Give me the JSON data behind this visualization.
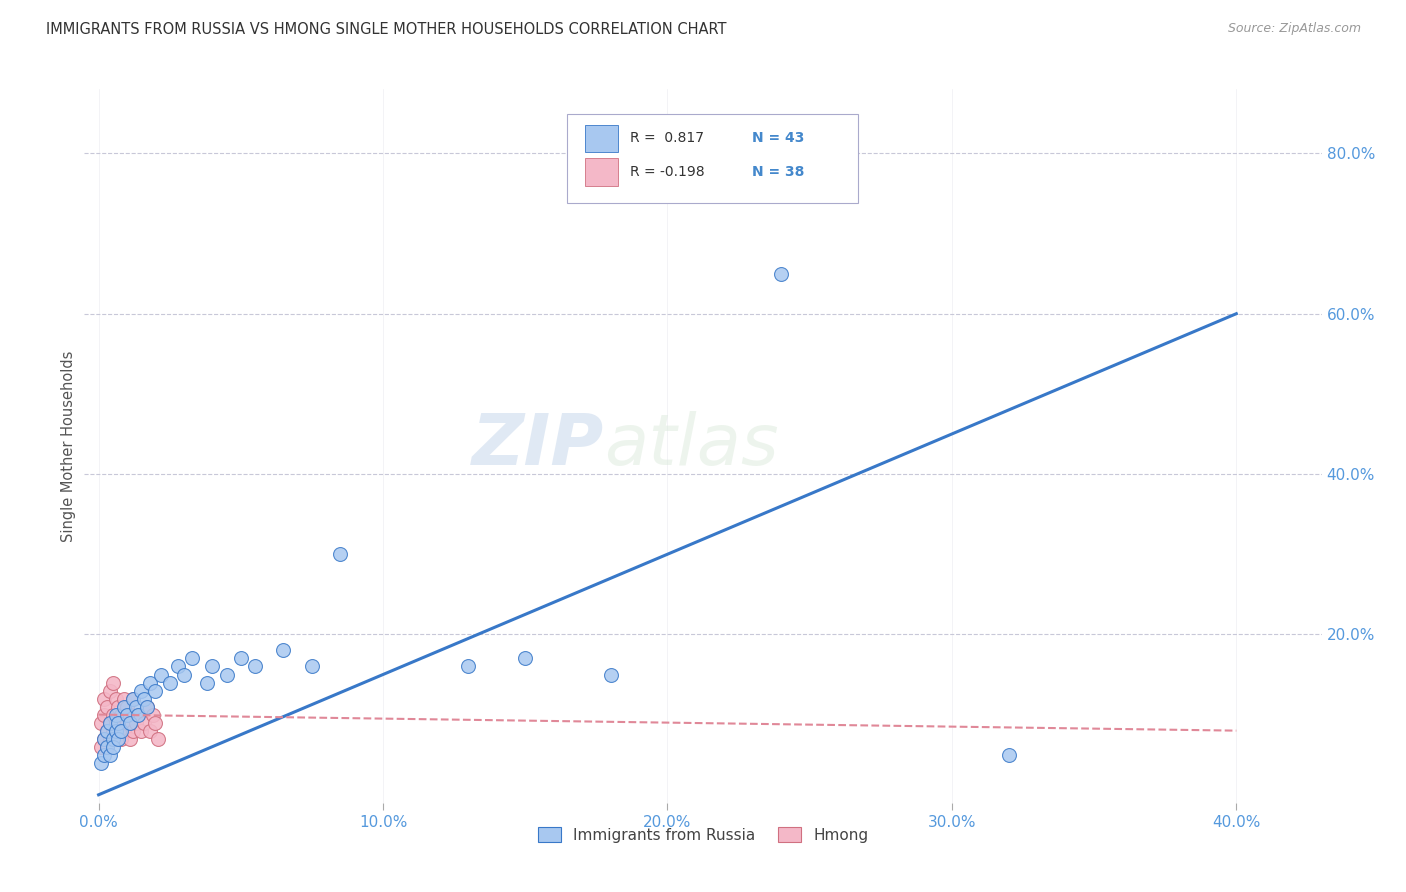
{
  "title": "IMMIGRANTS FROM RUSSIA VS HMONG SINGLE MOTHER HOUSEHOLDS CORRELATION CHART",
  "source": "Source: ZipAtlas.com",
  "ylabel": "Single Mother Households",
  "x_tick_labels": [
    "0.0%",
    "10.0%",
    "20.0%",
    "30.0%",
    "40.0%"
  ],
  "x_tick_values": [
    0.0,
    0.1,
    0.2,
    0.3,
    0.4
  ],
  "y_tick_labels": [
    "20.0%",
    "40.0%",
    "60.0%",
    "80.0%"
  ],
  "y_tick_values": [
    0.2,
    0.4,
    0.6,
    0.8
  ],
  "legend_label1": "Immigrants from Russia",
  "legend_label2": "Hmong",
  "legend_R1": "R =  0.817",
  "legend_N1": "N = 43",
  "legend_R2": "R = -0.198",
  "legend_N2": "N = 38",
  "blue_color": "#A8C8F0",
  "pink_color": "#F4B8C8",
  "trend_blue": "#3878C8",
  "trend_pink": "#E08898",
  "background_color": "#FFFFFF",
  "grid_color": "#C8C8D8",
  "watermark_zip": "ZIP",
  "watermark_atlas": "atlas",
  "russia_x": [
    0.001,
    0.002,
    0.002,
    0.003,
    0.003,
    0.004,
    0.004,
    0.005,
    0.005,
    0.006,
    0.006,
    0.007,
    0.007,
    0.008,
    0.009,
    0.01,
    0.011,
    0.012,
    0.013,
    0.014,
    0.015,
    0.016,
    0.017,
    0.018,
    0.02,
    0.022,
    0.025,
    0.028,
    0.03,
    0.033,
    0.038,
    0.04,
    0.045,
    0.05,
    0.055,
    0.065,
    0.075,
    0.085,
    0.13,
    0.15,
    0.18,
    0.24,
    0.32
  ],
  "russia_y": [
    0.04,
    0.05,
    0.07,
    0.06,
    0.08,
    0.05,
    0.09,
    0.07,
    0.06,
    0.08,
    0.1,
    0.07,
    0.09,
    0.08,
    0.11,
    0.1,
    0.09,
    0.12,
    0.11,
    0.1,
    0.13,
    0.12,
    0.11,
    0.14,
    0.13,
    0.15,
    0.14,
    0.16,
    0.15,
    0.17,
    0.14,
    0.16,
    0.15,
    0.17,
    0.16,
    0.18,
    0.16,
    0.3,
    0.16,
    0.17,
    0.15,
    0.65,
    0.05
  ],
  "hmong_x": [
    0.001,
    0.001,
    0.002,
    0.002,
    0.002,
    0.003,
    0.003,
    0.003,
    0.004,
    0.004,
    0.004,
    0.005,
    0.005,
    0.005,
    0.006,
    0.006,
    0.006,
    0.007,
    0.007,
    0.008,
    0.008,
    0.009,
    0.009,
    0.01,
    0.01,
    0.011,
    0.011,
    0.012,
    0.012,
    0.013,
    0.014,
    0.015,
    0.016,
    0.017,
    0.018,
    0.019,
    0.02,
    0.021
  ],
  "hmong_y": [
    0.06,
    0.09,
    0.07,
    0.1,
    0.12,
    0.06,
    0.08,
    0.11,
    0.07,
    0.09,
    0.13,
    0.08,
    0.1,
    0.14,
    0.07,
    0.09,
    0.12,
    0.08,
    0.11,
    0.07,
    0.1,
    0.08,
    0.12,
    0.09,
    0.11,
    0.07,
    0.1,
    0.08,
    0.12,
    0.09,
    0.1,
    0.08,
    0.09,
    0.11,
    0.08,
    0.1,
    0.09,
    0.07
  ],
  "xlim": [
    -0.005,
    0.43
  ],
  "ylim": [
    -0.01,
    0.88
  ],
  "trend_blue_line": [
    0.0,
    0.0,
    0.4,
    0.6
  ],
  "trend_pink_line": [
    0.0,
    0.1,
    0.4,
    0.08
  ],
  "marker_size": 100
}
